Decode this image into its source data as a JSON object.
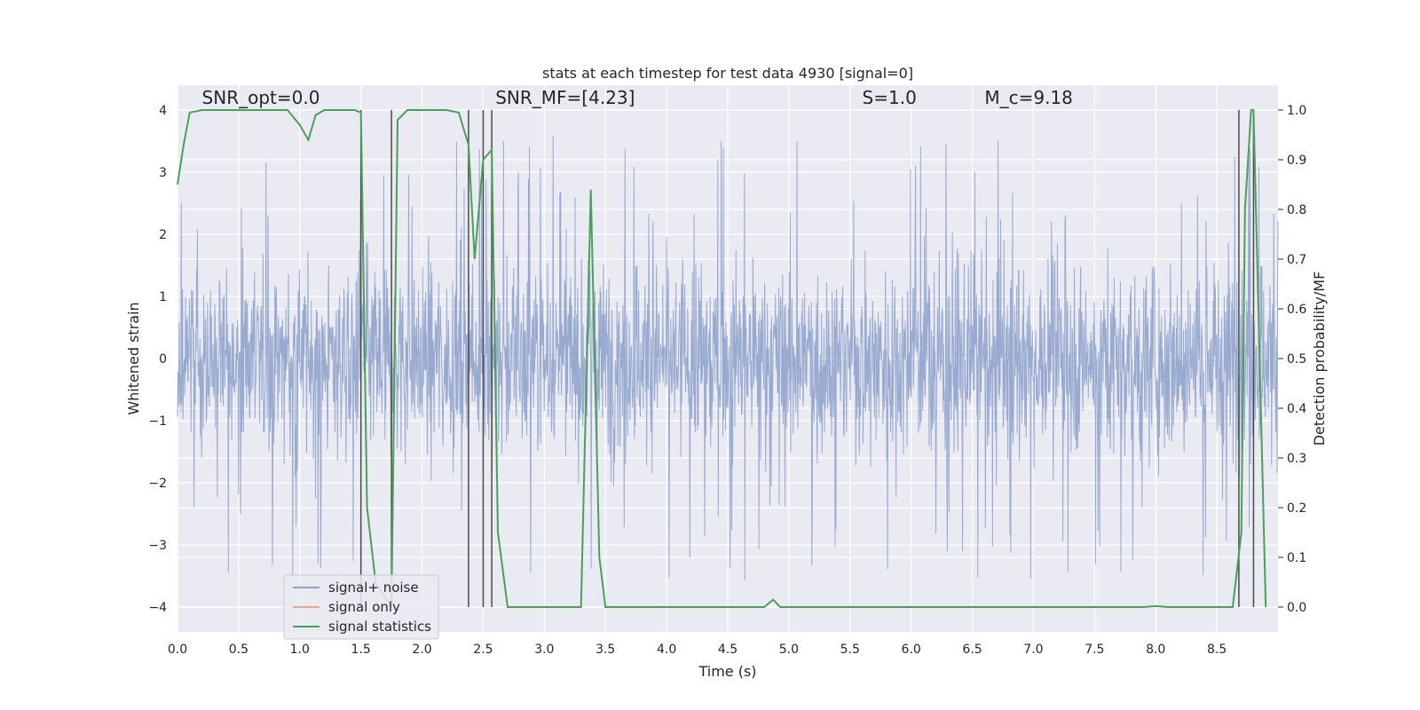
{
  "chart_data": {
    "type": "line",
    "title": "stats at each timestep for test data 4930 [signal=0]",
    "xlabel": "Time (s)",
    "ylabel": "Whitened strain",
    "y2label": "Detection probability/MF",
    "xlim": [
      0.0,
      9.0
    ],
    "ylim": [
      -4.4,
      4.4
    ],
    "y2lim": [
      -0.05,
      1.05
    ],
    "x_ticks": [
      0.0,
      0.5,
      1.0,
      1.5,
      2.0,
      2.5,
      3.0,
      3.5,
      4.0,
      4.5,
      5.0,
      5.5,
      6.0,
      6.5,
      7.0,
      7.5,
      8.0,
      8.5
    ],
    "x_tick_labels": [
      "0.0",
      "0.5",
      "1.0",
      "1.5",
      "2.0",
      "2.5",
      "3.0",
      "3.5",
      "4.0",
      "4.5",
      "5.0",
      "5.5",
      "6.0",
      "6.5",
      "7.0",
      "7.5",
      "8.0",
      "8.5"
    ],
    "y_ticks": [
      4,
      3,
      2,
      1,
      0,
      -1,
      -2,
      -3,
      -4
    ],
    "y_tick_labels": [
      "4",
      "3",
      "2",
      "1",
      "0",
      "−1",
      "−2",
      "−3",
      "−4"
    ],
    "y2_ticks": [
      1.0,
      0.9,
      0.8,
      0.7,
      0.6,
      0.5,
      0.4,
      0.3,
      0.2,
      0.1,
      0.0
    ],
    "y2_tick_labels": [
      "1.0",
      "0.9",
      "0.8",
      "0.7",
      "0.6",
      "0.5",
      "0.4",
      "0.3",
      "0.2",
      "0.1",
      "0.0"
    ],
    "grid": true,
    "legend_position": "lower-left",
    "annotations": [
      {
        "text": "SNR_opt=0.0",
        "x": 0.2,
        "y": 4.1
      },
      {
        "text": "SNR_MF=[4.23]",
        "x": 2.6,
        "y": 4.1
      },
      {
        "text": "S=1.0",
        "x": 5.6,
        "y": 4.1
      },
      {
        "text": "M_c=9.18",
        "x": 6.6,
        "y": 4.1
      }
    ],
    "vertical_lines_x": [
      1.5,
      1.75,
      2.38,
      2.5,
      2.57,
      8.68,
      8.8
    ],
    "series": [
      {
        "name": "signal+ noise",
        "color": "#8fa3cc",
        "axis": "left",
        "description": "whitened noise trace, roughly amplitude +/-2 with spikes to +/-3.5",
        "envelope": {
          "upper": 2.4,
          "lower": -2.4,
          "peak_max": 3.6,
          "peak_min": -4.0
        }
      },
      {
        "name": "signal only",
        "color": "#e8a68a",
        "axis": "left",
        "values": []
      },
      {
        "name": "signal statistics",
        "color": "#4c9f5a",
        "axis": "right",
        "x": [
          0.0,
          0.05,
          0.1,
          0.2,
          0.5,
          0.9,
          1.0,
          1.07,
          1.13,
          1.2,
          1.45,
          1.5,
          1.55,
          1.62,
          1.75,
          1.8,
          1.88,
          2.0,
          2.2,
          2.3,
          2.38,
          2.43,
          2.5,
          2.57,
          2.62,
          2.7,
          3.0,
          3.25,
          3.3,
          3.38,
          3.45,
          3.5,
          3.6,
          4.5,
          4.8,
          4.87,
          4.93,
          5.0,
          7.9,
          8.0,
          8.1,
          8.5,
          8.63,
          8.7,
          8.73,
          8.78,
          8.8,
          8.85,
          8.9
        ],
        "values": [
          0.85,
          0.93,
          0.995,
          1.0,
          1.0,
          1.0,
          0.97,
          0.94,
          0.99,
          1.0,
          1.0,
          0.995,
          0.2,
          0.05,
          0.0,
          0.98,
          1.0,
          1.0,
          1.0,
          0.995,
          0.93,
          0.7,
          0.9,
          0.92,
          0.15,
          0.0,
          0.0,
          0.0,
          0.0,
          0.84,
          0.1,
          0.0,
          0.0,
          0.0,
          0.0,
          0.015,
          0.0,
          0.0,
          0.0,
          0.002,
          0.0,
          0.0,
          0.0,
          0.15,
          0.8,
          1.0,
          1.0,
          0.5,
          0.0
        ]
      }
    ]
  }
}
